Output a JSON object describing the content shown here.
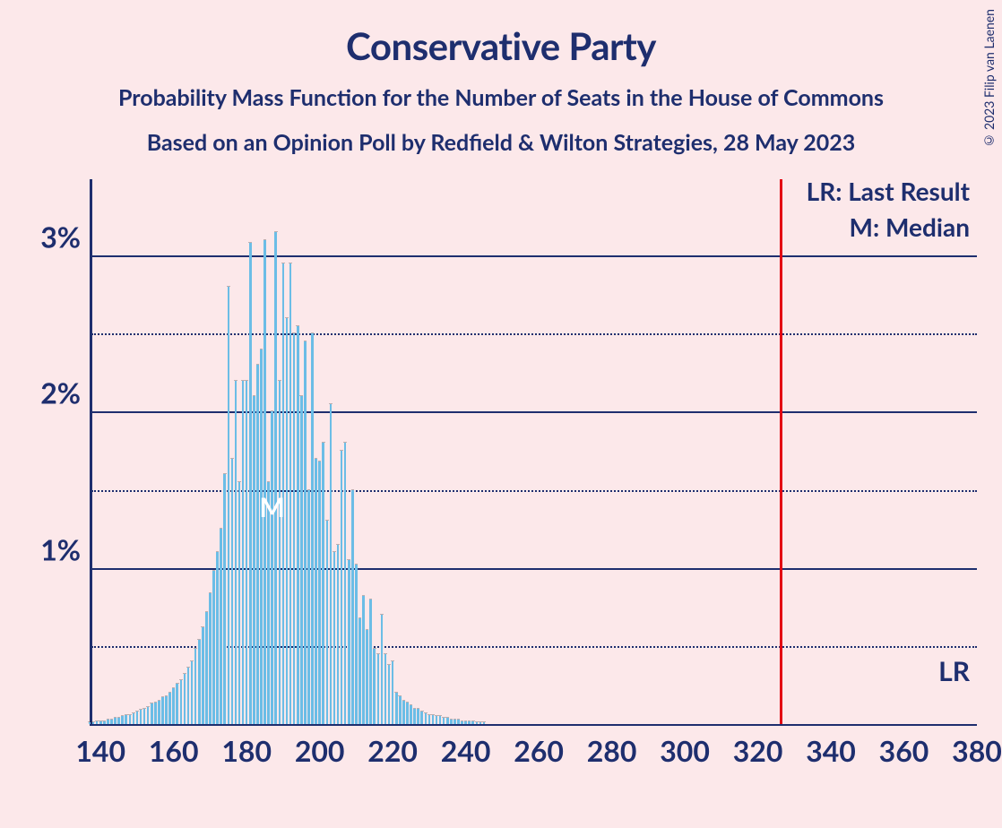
{
  "copyright": "© 2023 Filip van Laenen",
  "title": "Conservative Party",
  "subtitle1": "Probability Mass Function for the Number of Seats in the House of Commons",
  "subtitle2": "Based on an Opinion Poll by Redfield & Wilton Strategies, 28 May 2023",
  "legend": {
    "lr": "LR: Last Result",
    "m": "M: Median"
  },
  "lr_marker": "LR",
  "median_marker": "M",
  "chart": {
    "type": "bar-pmf",
    "background_color": "#fce8ea",
    "axis_color": "#1e2e6e",
    "bar_color": "#6bbde6",
    "lr_line_color": "#e30613",
    "text_color": "#1e2e6e",
    "median_text_color": "#ffffff",
    "title_fontsize": 42,
    "subtitle_fontsize": 25,
    "axis_label_fontsize": 32,
    "legend_fontsize": 28,
    "xlim": [
      137,
      380
    ],
    "ylim": [
      0,
      3.5
    ],
    "y_ticks_major": [
      1,
      2,
      3
    ],
    "y_ticks_minor": [
      0.5,
      1.5,
      2.5
    ],
    "y_tick_labels": [
      "1%",
      "2%",
      "3%"
    ],
    "x_ticks": [
      140,
      160,
      180,
      200,
      220,
      240,
      260,
      280,
      300,
      320,
      340,
      360,
      380
    ],
    "median_x": 187,
    "lr_x": 326,
    "bars": [
      {
        "x": 137,
        "y": 0.01
      },
      {
        "x": 138,
        "y": 0.01
      },
      {
        "x": 139,
        "y": 0.02
      },
      {
        "x": 140,
        "y": 0.02
      },
      {
        "x": 141,
        "y": 0.02
      },
      {
        "x": 142,
        "y": 0.03
      },
      {
        "x": 143,
        "y": 0.03
      },
      {
        "x": 144,
        "y": 0.04
      },
      {
        "x": 145,
        "y": 0.04
      },
      {
        "x": 146,
        "y": 0.05
      },
      {
        "x": 147,
        "y": 0.06
      },
      {
        "x": 148,
        "y": 0.06
      },
      {
        "x": 149,
        "y": 0.07
      },
      {
        "x": 150,
        "y": 0.08
      },
      {
        "x": 151,
        "y": 0.09
      },
      {
        "x": 152,
        "y": 0.1
      },
      {
        "x": 153,
        "y": 0.11
      },
      {
        "x": 154,
        "y": 0.13
      },
      {
        "x": 155,
        "y": 0.14
      },
      {
        "x": 156,
        "y": 0.15
      },
      {
        "x": 157,
        "y": 0.17
      },
      {
        "x": 158,
        "y": 0.18
      },
      {
        "x": 159,
        "y": 0.2
      },
      {
        "x": 160,
        "y": 0.23
      },
      {
        "x": 161,
        "y": 0.26
      },
      {
        "x": 162,
        "y": 0.28
      },
      {
        "x": 163,
        "y": 0.32
      },
      {
        "x": 164,
        "y": 0.36
      },
      {
        "x": 165,
        "y": 0.4
      },
      {
        "x": 166,
        "y": 0.48
      },
      {
        "x": 167,
        "y": 0.54
      },
      {
        "x": 168,
        "y": 0.62
      },
      {
        "x": 169,
        "y": 0.72
      },
      {
        "x": 170,
        "y": 0.84
      },
      {
        "x": 171,
        "y": 0.98
      },
      {
        "x": 172,
        "y": 1.1
      },
      {
        "x": 173,
        "y": 1.25
      },
      {
        "x": 174,
        "y": 1.6
      },
      {
        "x": 175,
        "y": 2.8
      },
      {
        "x": 176,
        "y": 1.7
      },
      {
        "x": 177,
        "y": 2.2
      },
      {
        "x": 178,
        "y": 1.55
      },
      {
        "x": 179,
        "y": 2.2
      },
      {
        "x": 180,
        "y": 2.2
      },
      {
        "x": 181,
        "y": 3.08
      },
      {
        "x": 182,
        "y": 2.1
      },
      {
        "x": 183,
        "y": 2.3
      },
      {
        "x": 184,
        "y": 2.4
      },
      {
        "x": 185,
        "y": 3.1
      },
      {
        "x": 186,
        "y": 1.55
      },
      {
        "x": 187,
        "y": 2.0
      },
      {
        "x": 188,
        "y": 3.15
      },
      {
        "x": 189,
        "y": 2.2
      },
      {
        "x": 190,
        "y": 2.95
      },
      {
        "x": 191,
        "y": 2.6
      },
      {
        "x": 192,
        "y": 2.95
      },
      {
        "x": 193,
        "y": 2.5
      },
      {
        "x": 194,
        "y": 2.55
      },
      {
        "x": 195,
        "y": 2.1
      },
      {
        "x": 196,
        "y": 2.45
      },
      {
        "x": 197,
        "y": 1.5
      },
      {
        "x": 198,
        "y": 2.5
      },
      {
        "x": 199,
        "y": 1.7
      },
      {
        "x": 200,
        "y": 1.68
      },
      {
        "x": 201,
        "y": 1.8
      },
      {
        "x": 202,
        "y": 1.3
      },
      {
        "x": 203,
        "y": 2.05
      },
      {
        "x": 204,
        "y": 1.1
      },
      {
        "x": 205,
        "y": 1.15
      },
      {
        "x": 206,
        "y": 1.75
      },
      {
        "x": 207,
        "y": 1.8
      },
      {
        "x": 208,
        "y": 1.05
      },
      {
        "x": 209,
        "y": 1.5
      },
      {
        "x": 210,
        "y": 1.02
      },
      {
        "x": 211,
        "y": 0.68
      },
      {
        "x": 212,
        "y": 0.82
      },
      {
        "x": 213,
        "y": 0.6
      },
      {
        "x": 214,
        "y": 0.8
      },
      {
        "x": 215,
        "y": 0.48
      },
      {
        "x": 216,
        "y": 0.45
      },
      {
        "x": 217,
        "y": 0.7
      },
      {
        "x": 218,
        "y": 0.45
      },
      {
        "x": 219,
        "y": 0.38
      },
      {
        "x": 220,
        "y": 0.4
      },
      {
        "x": 221,
        "y": 0.2
      },
      {
        "x": 222,
        "y": 0.18
      },
      {
        "x": 223,
        "y": 0.15
      },
      {
        "x": 224,
        "y": 0.14
      },
      {
        "x": 225,
        "y": 0.12
      },
      {
        "x": 226,
        "y": 0.1
      },
      {
        "x": 227,
        "y": 0.1
      },
      {
        "x": 228,
        "y": 0.08
      },
      {
        "x": 229,
        "y": 0.07
      },
      {
        "x": 230,
        "y": 0.06
      },
      {
        "x": 231,
        "y": 0.06
      },
      {
        "x": 232,
        "y": 0.05
      },
      {
        "x": 233,
        "y": 0.05
      },
      {
        "x": 234,
        "y": 0.04
      },
      {
        "x": 235,
        "y": 0.04
      },
      {
        "x": 236,
        "y": 0.03
      },
      {
        "x": 237,
        "y": 0.03
      },
      {
        "x": 238,
        "y": 0.03
      },
      {
        "x": 239,
        "y": 0.02
      },
      {
        "x": 240,
        "y": 0.02
      },
      {
        "x": 241,
        "y": 0.02
      },
      {
        "x": 242,
        "y": 0.02
      },
      {
        "x": 243,
        "y": 0.01
      },
      {
        "x": 244,
        "y": 0.01
      },
      {
        "x": 245,
        "y": 0.01
      }
    ]
  }
}
